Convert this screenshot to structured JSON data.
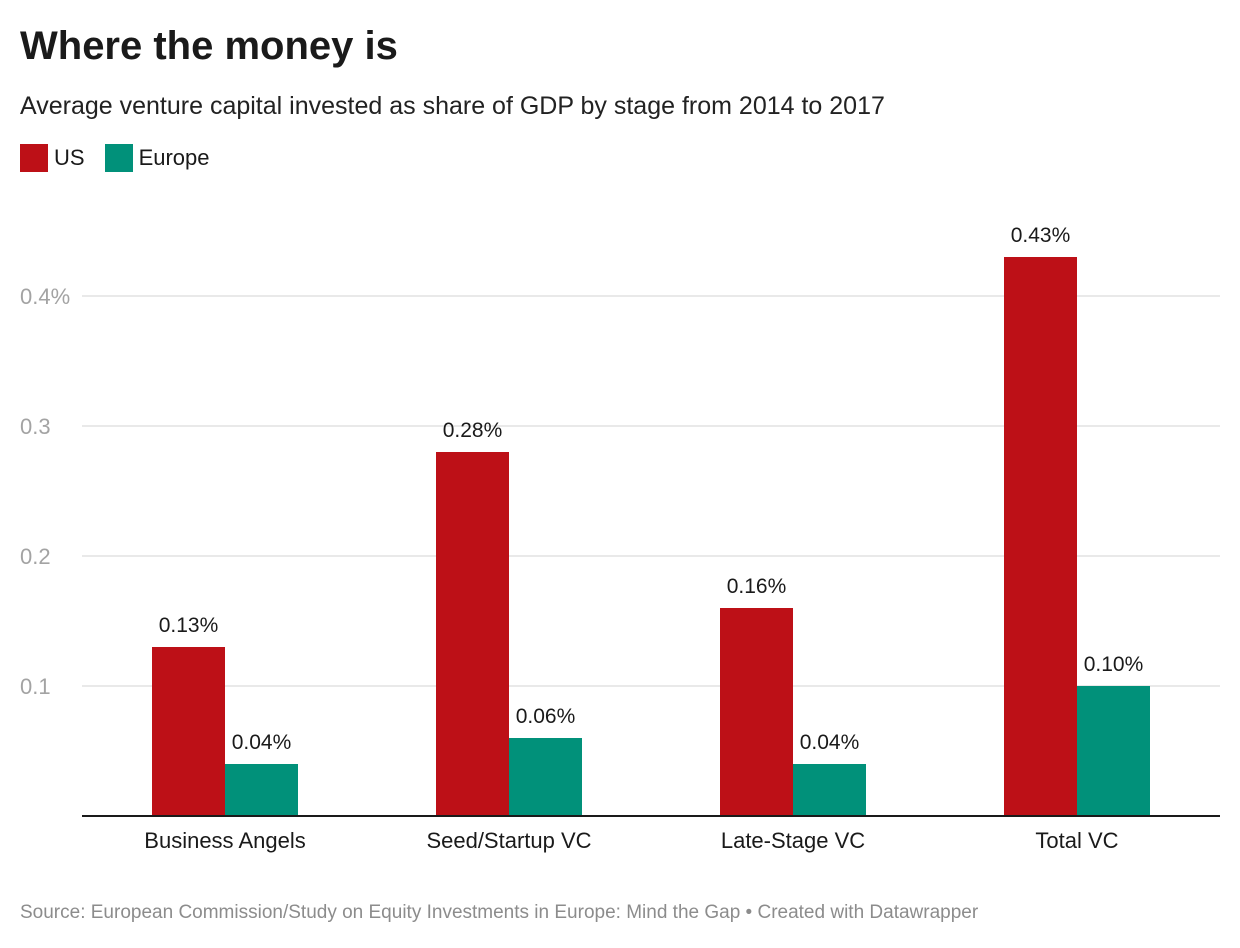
{
  "chart_data": {
    "type": "bar",
    "title": "Where the money is",
    "subtitle": "Average venture capital invested as share of GDP by stage from 2014 to 2017",
    "categories": [
      "Business Angels",
      "Seed/Startup VC",
      "Late-Stage VC",
      "Total VC"
    ],
    "series": [
      {
        "name": "US",
        "color": "#bd1017",
        "values": [
          0.13,
          0.28,
          0.16,
          0.43
        ],
        "labels": [
          "0.13%",
          "0.28%",
          "0.16%",
          "0.43%"
        ]
      },
      {
        "name": "Europe",
        "color": "#01917a",
        "values": [
          0.04,
          0.06,
          0.04,
          0.1
        ],
        "labels": [
          "0.04%",
          "0.06%",
          "0.04%",
          "0.10%"
        ]
      }
    ],
    "yticks": [
      0.1,
      0.2,
      0.3,
      0.4
    ],
    "ytick_labels": [
      "0.1",
      "0.2",
      "0.3",
      "0.4%"
    ],
    "ylim": [
      0,
      0.4
    ],
    "grid": true,
    "legend_position": "top-left",
    "xlabel": "",
    "ylabel": "",
    "source": "Source: European Commission/Study on Equity Investments in Europe: Mind the Gap • Created with Datawrapper"
  }
}
